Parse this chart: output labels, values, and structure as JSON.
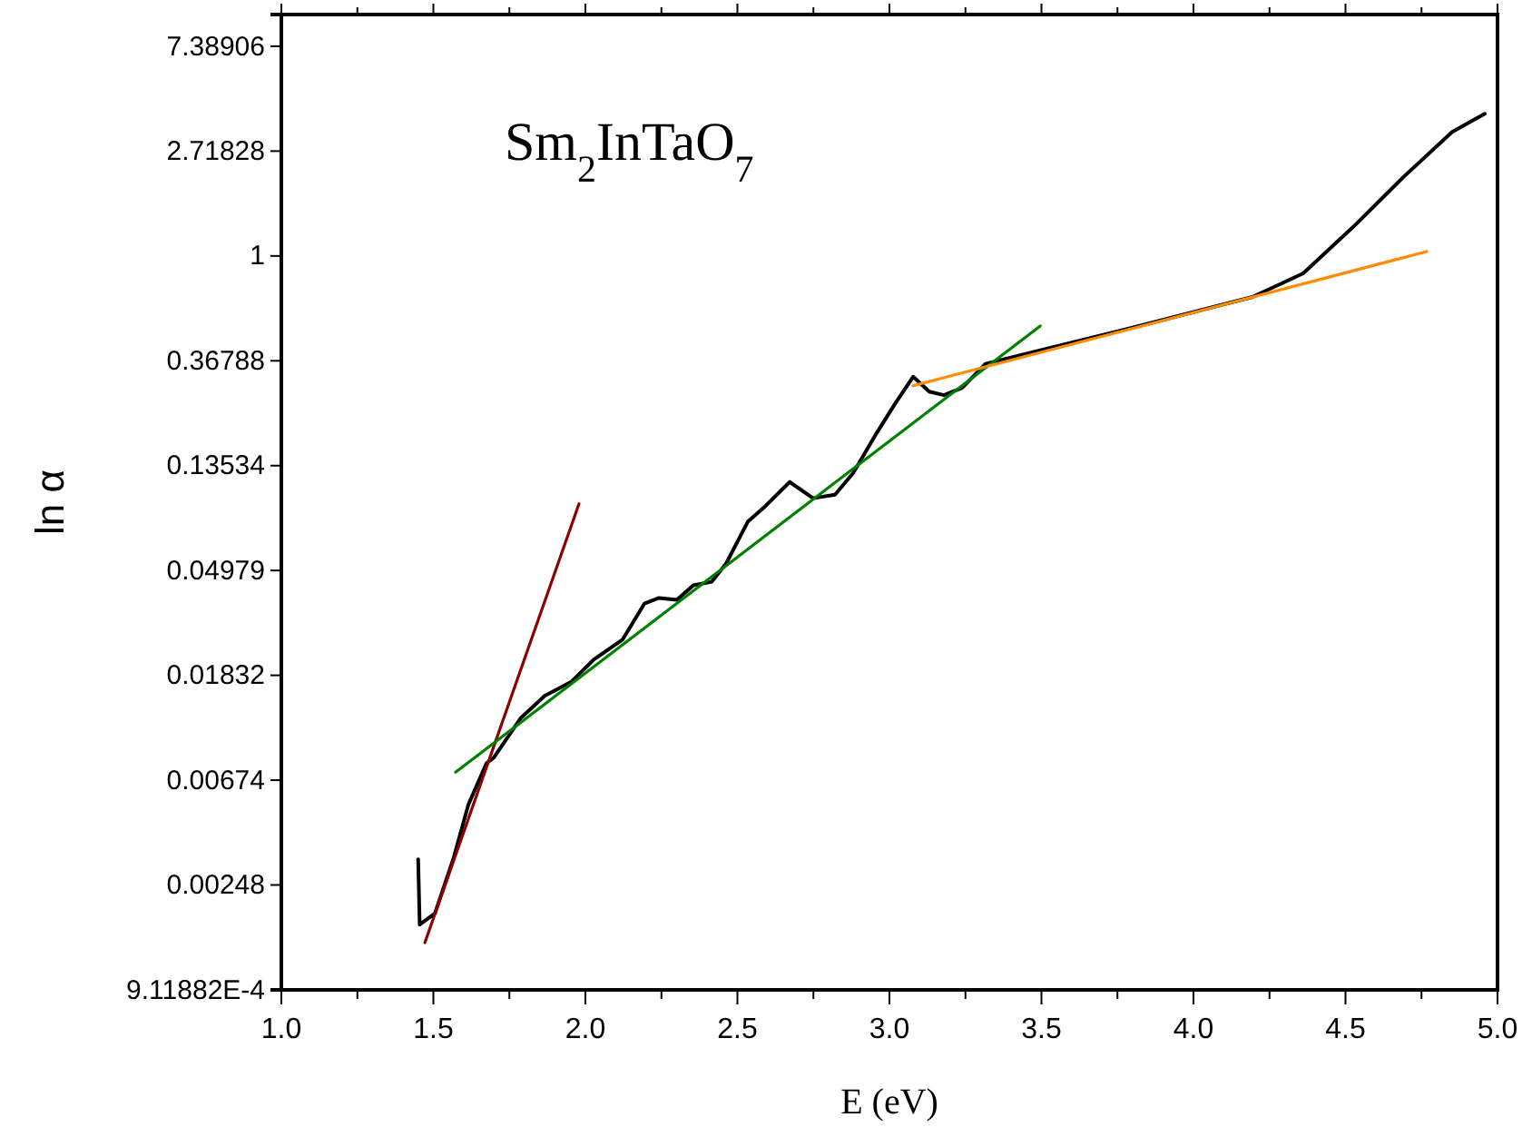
{
  "chart_data": {
    "type": "line",
    "xlabel": "E (eV)",
    "ylabel": "ln α",
    "annotations": [
      "Sm$_{2}$InTaO$_{7}$"
    ],
    "log": true,
    "grid": false,
    "marker": "none",
    "line_style": "solid",
    "xlim": [
      1,
      5
    ],
    "xticks": [
      {
        "value": 1,
        "label": "1.0"
      },
      {
        "value": 1.25,
        "label": null
      },
      {
        "value": 1.5,
        "label": "1.5"
      },
      {
        "value": 1.75,
        "label": null
      },
      {
        "value": 2,
        "label": "2.0"
      },
      {
        "value": 2.25,
        "label": null
      },
      {
        "value": 2.5,
        "label": "2.5"
      },
      {
        "value": 2.75,
        "label": null
      },
      {
        "value": 3,
        "label": "3.0"
      },
      {
        "value": 3.25,
        "label": null
      },
      {
        "value": 3.5,
        "label": "3.5"
      },
      {
        "value": 3.75,
        "label": null
      },
      {
        "value": 4,
        "label": "4.0"
      },
      {
        "value": 4.25,
        "label": null
      },
      {
        "value": 4.5,
        "label": "4.5"
      },
      {
        "value": 4.75,
        "label": null
      },
      {
        "value": 5,
        "label": "5.0"
      }
    ],
    "ylim": [
      0.000911882,
      10
    ],
    "yticks": [
      {
        "value": 0.000911882,
        "label": "9.11882E-4"
      },
      0.00248,
      0.00674,
      0.01832,
      0.04979,
      0.13534,
      0.36788,
      1,
      2.71828,
      7.38906
    ],
    "series": [
      {
        "color": "#000000",
        "x": [
          1.45,
          1.455,
          1.505,
          1.567,
          1.615,
          1.675,
          1.699,
          1.788,
          1.866,
          1.955,
          2.027,
          2.122,
          2.194,
          2.242,
          2.301,
          2.355,
          2.415,
          2.463,
          2.534,
          2.594,
          2.672,
          2.749,
          2.821,
          2.881,
          2.958,
          3.018,
          3.078,
          3.131,
          3.179,
          3.239,
          3.316,
          3.46,
          3.776,
          4.194,
          4.361,
          4.534,
          4.69,
          4.851,
          4.958
        ],
        "values": [
          0.00317,
          0.0017,
          0.00189,
          0.00322,
          0.00533,
          0.00793,
          0.00836,
          0.01221,
          0.01505,
          0.01727,
          0.02126,
          0.02572,
          0.0363,
          0.0383,
          0.0376,
          0.0432,
          0.0447,
          0.0532,
          0.0792,
          0.0925,
          0.1158,
          0.0992,
          0.1026,
          0.1263,
          0.1847,
          0.2437,
          0.316,
          0.274,
          0.265,
          0.284,
          0.357,
          0.396,
          0.496,
          0.676,
          0.847,
          1.351,
          2.119,
          3.264,
          3.88
        ]
      },
      {
        "color": "#8b0000",
        "x": [
          1.472,
          1.979
        ],
        "values": [
          0.00143,
          0.0941
        ]
      },
      {
        "color": "#008000",
        "x": [
          1.573,
          3.496
        ],
        "values": [
          0.00727,
          0.513
        ]
      },
      {
        "color": "#ff8c00",
        "x": [
          3.078,
          4.767
        ],
        "values": [
          0.29,
          1.043
        ]
      }
    ]
  }
}
